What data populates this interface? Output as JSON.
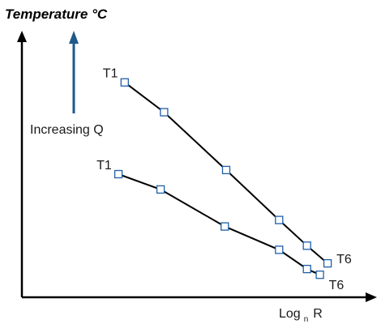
{
  "chart_data": {
    "type": "line",
    "y_label": "Temperature °C",
    "x_label": {
      "main": "Log",
      "subscript": "n",
      "tail": "R"
    },
    "annotation": "Increasing Q",
    "grid": false,
    "axis_ticks": false,
    "colors": {
      "series": "#000000",
      "marker": "#1f5fa8",
      "arrow": "#1f5a8a",
      "axis": "#000000"
    },
    "series": [
      {
        "start_label": "T1",
        "end_label": "T6",
        "points": [
          {
            "x": 0.295,
            "y": 0.829
          },
          {
            "x": 0.408,
            "y": 0.714
          },
          {
            "x": 0.586,
            "y": 0.491
          },
          {
            "x": 0.738,
            "y": 0.298
          },
          {
            "x": 0.818,
            "y": 0.199
          },
          {
            "x": 0.877,
            "y": 0.131
          }
        ]
      },
      {
        "start_label": "T1",
        "end_label": "T6",
        "points": [
          {
            "x": 0.277,
            "y": 0.475
          },
          {
            "x": 0.398,
            "y": 0.416
          },
          {
            "x": 0.582,
            "y": 0.273
          },
          {
            "x": 0.738,
            "y": 0.183
          },
          {
            "x": 0.818,
            "y": 0.109
          },
          {
            "x": 0.855,
            "y": 0.087
          }
        ]
      }
    ]
  }
}
